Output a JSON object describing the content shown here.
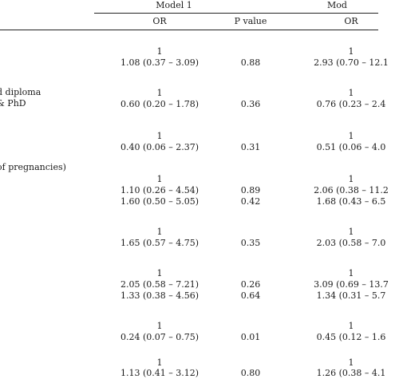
{
  "header": {
    "model1": "Model 1",
    "model2_partial": "Mod",
    "col_or1": "OR",
    "col_p1": "P value",
    "col_or2": "OR"
  },
  "row_labels": [
    {
      "text": "d diploma",
      "top": 0
    },
    {
      "text": "& PhD",
      "top": 0
    },
    {
      "text": "of pregnancies)",
      "top": 0
    }
  ],
  "rows": [
    {
      "or1": "1",
      "p1": "",
      "or2": "1"
    },
    {
      "or1": "1.08 (0.37 – 3.09)",
      "p1": "0.88",
      "or2": "2.93 (0.70 – 12.1"
    },
    {
      "or1": "1",
      "p1": "",
      "or2": "1"
    },
    {
      "or1": "0.60 (0.20 – 1.78)",
      "p1": "0.36",
      "or2": "0.76 (0.23 – 2.4"
    },
    {
      "or1": "1",
      "p1": "",
      "or2": "1"
    },
    {
      "or1": "0.40 (0.06 – 2.37)",
      "p1": "0.31",
      "or2": "0.51 (0.06 – 4.0"
    },
    {
      "or1": "1",
      "p1": "",
      "or2": "1"
    },
    {
      "or1": "1.10 (0.26 – 4.54)",
      "p1": "0.89",
      "or2": "2.06 (0.38 – 11.2"
    },
    {
      "or1": "1.60 (0.50 – 5.05)",
      "p1": "0.42",
      "or2": "1.68 (0.43 – 6.5"
    },
    {
      "or1": "1",
      "p1": "",
      "or2": "1"
    },
    {
      "or1": "1.65 (0.57 – 4.75)",
      "p1": "0.35",
      "or2": "2.03 (0.58 – 7.0"
    },
    {
      "or1": "1",
      "p1": "",
      "or2": "1"
    },
    {
      "or1": "2.05 (0.58 – 7.21)",
      "p1": "0.26",
      "or2": "3.09 (0.69 – 13.7"
    },
    {
      "or1": "1.33 (0.38 – 4.56)",
      "p1": "0.64",
      "or2": "1.34 (0.31 – 5.7"
    },
    {
      "or1": "1",
      "p1": "",
      "or2": "1"
    },
    {
      "or1": "0.24 (0.07 – 0.75)",
      "p1": "0.01",
      "or2": "0.45 (0.12 – 1.6"
    },
    {
      "or1": "1",
      "p1": "",
      "or2": "1"
    },
    {
      "or1": "1.13 (0.41 – 3.12)",
      "p1": "0.80",
      "or2": "1.26 (0.38 – 4.1"
    }
  ],
  "labels": {
    "diploma": "d diploma",
    "phd": "& PhD",
    "pregnancies": "of pregnancies)"
  }
}
